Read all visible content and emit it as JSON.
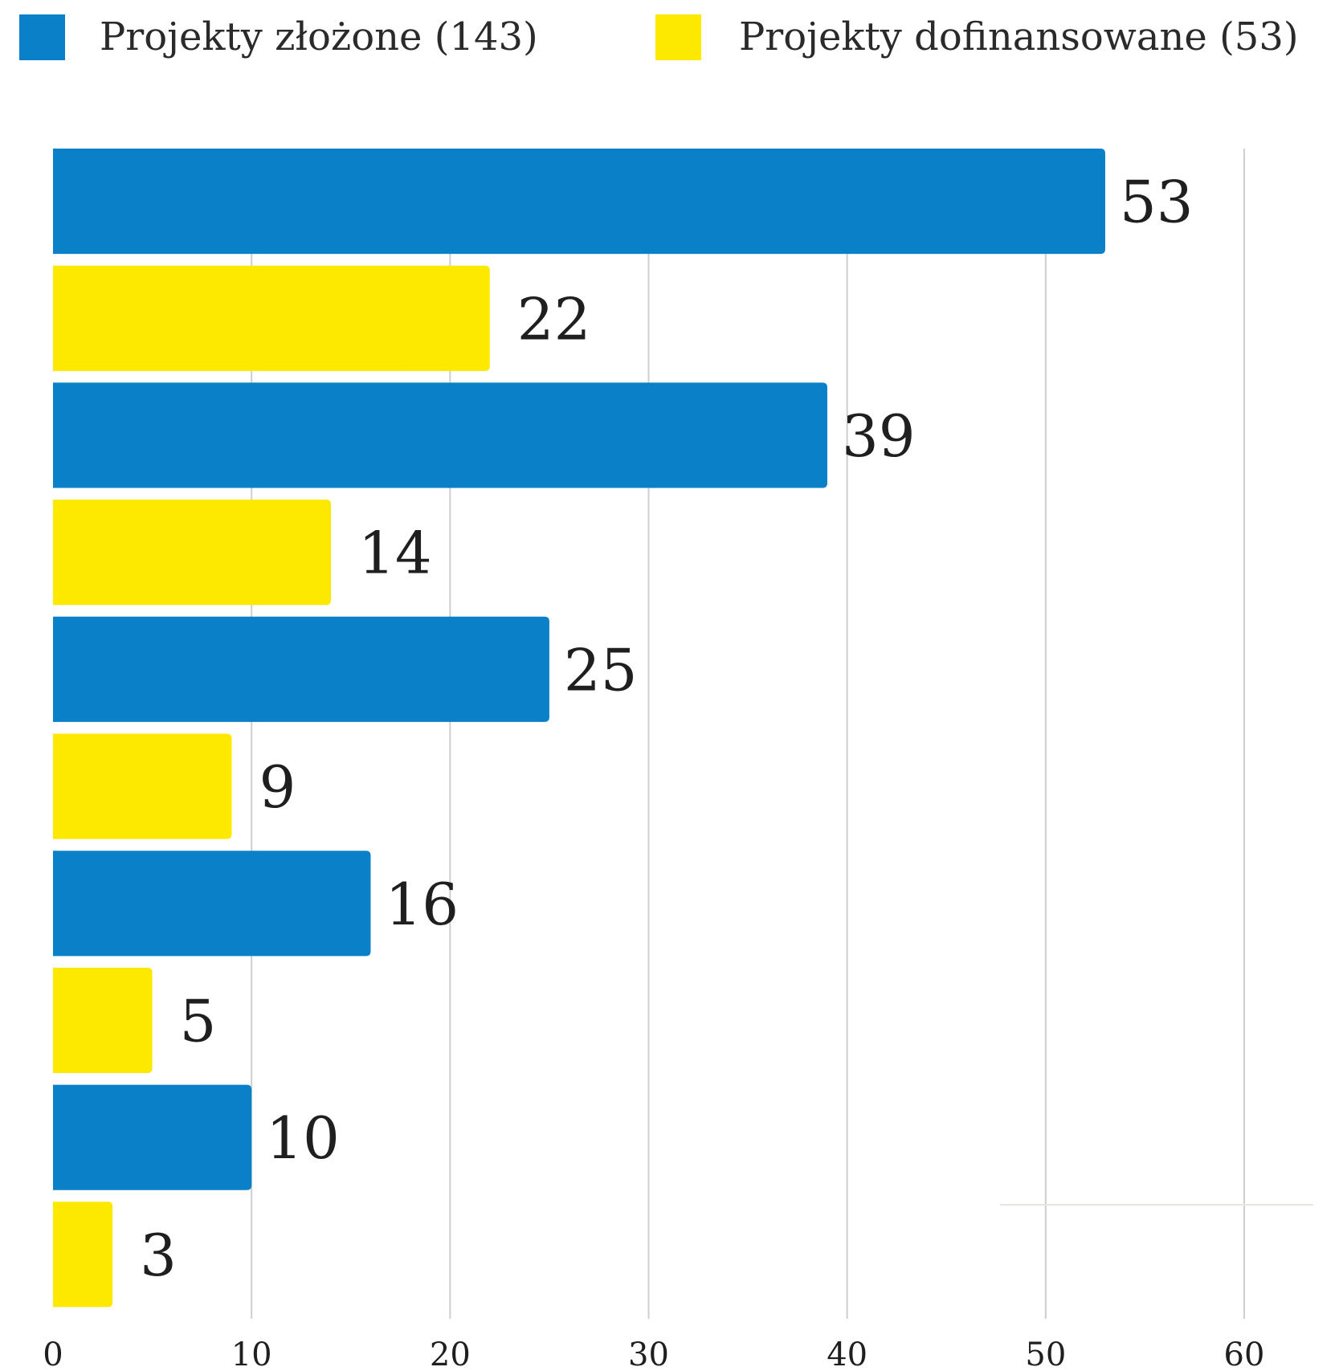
{
  "chart_data": {
    "type": "bar",
    "orientation": "horizontal",
    "categories": [
      "",
      "",
      "",
      "",
      ""
    ],
    "series": [
      {
        "name": "Projekty złożone (143)",
        "color": "#0A80C8",
        "values": [
          53,
          39,
          25,
          16,
          10
        ]
      },
      {
        "name": "Projekty dofinansowane (53)",
        "color": "#FDE800",
        "values": [
          22,
          14,
          9,
          5,
          3
        ]
      }
    ],
    "xlim": [
      0,
      60
    ],
    "x_ticks": [
      0,
      10,
      20,
      30,
      40,
      50,
      60
    ],
    "grid": true,
    "legend": "top",
    "title": "",
    "xlabel": "",
    "ylabel": ""
  }
}
